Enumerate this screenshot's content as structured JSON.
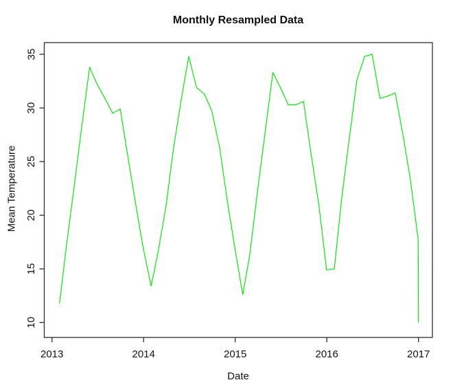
{
  "chart_data": {
    "type": "line",
    "title": "Monthly Resampled Data",
    "xlabel": "Date",
    "ylabel": "Mean Temperature",
    "line_color": "#00ee00",
    "axis_color": "#3c3c3c",
    "grid": false,
    "legend_position": "none",
    "x_ticks": [
      "2013",
      "2014",
      "2015",
      "2016",
      "2017"
    ],
    "y_ticks": [
      "10",
      "15",
      "20",
      "25",
      "30",
      "35"
    ],
    "xlim_years": [
      2012.93,
      2017.15
    ],
    "ylim": [
      9,
      36
    ],
    "points": [
      {
        "date": "2013-01-31",
        "value": 11.8
      },
      {
        "date": "2013-02-28",
        "value": 17.2
      },
      {
        "date": "2013-03-31",
        "value": 22.8
      },
      {
        "date": "2013-04-30",
        "value": 28.3
      },
      {
        "date": "2013-05-31",
        "value": 33.8
      },
      {
        "date": "2013-06-30",
        "value": 32.2
      },
      {
        "date": "2013-07-31",
        "value": 30.9
      },
      {
        "date": "2013-08-31",
        "value": 29.5
      },
      {
        "date": "2013-09-30",
        "value": 29.9
      },
      {
        "date": "2013-10-31",
        "value": 25.4
      },
      {
        "date": "2013-11-30",
        "value": 21.1
      },
      {
        "date": "2013-12-31",
        "value": 16.9
      },
      {
        "date": "2014-01-31",
        "value": 13.4
      },
      {
        "date": "2014-02-28",
        "value": 16.6
      },
      {
        "date": "2014-03-31",
        "value": 20.8
      },
      {
        "date": "2014-04-30",
        "value": 26.2
      },
      {
        "date": "2014-05-31",
        "value": 30.8
      },
      {
        "date": "2014-06-30",
        "value": 34.8
      },
      {
        "date": "2014-07-31",
        "value": 31.9
      },
      {
        "date": "2014-08-31",
        "value": 31.3
      },
      {
        "date": "2014-09-30",
        "value": 29.7
      },
      {
        "date": "2014-10-31",
        "value": 26.3
      },
      {
        "date": "2014-11-30",
        "value": 21.4
      },
      {
        "date": "2014-12-31",
        "value": 16.9
      },
      {
        "date": "2015-01-31",
        "value": 12.6
      },
      {
        "date": "2015-02-28",
        "value": 16.3
      },
      {
        "date": "2015-03-31",
        "value": 22.3
      },
      {
        "date": "2015-04-30",
        "value": 27.7
      },
      {
        "date": "2015-05-31",
        "value": 33.3
      },
      {
        "date": "2015-06-30",
        "value": 31.9
      },
      {
        "date": "2015-07-31",
        "value": 30.3
      },
      {
        "date": "2015-08-31",
        "value": 30.3
      },
      {
        "date": "2015-09-30",
        "value": 30.6
      },
      {
        "date": "2015-10-31",
        "value": 25.6
      },
      {
        "date": "2015-11-30",
        "value": 21.0
      },
      {
        "date": "2015-12-31",
        "value": 14.9
      },
      {
        "date": "2016-01-31",
        "value": 15.0
      },
      {
        "date": "2016-02-29",
        "value": 21.5
      },
      {
        "date": "2016-03-31",
        "value": 27.2
      },
      {
        "date": "2016-04-30",
        "value": 32.6
      },
      {
        "date": "2016-05-31",
        "value": 34.8
      },
      {
        "date": "2016-06-30",
        "value": 35.0
      },
      {
        "date": "2016-07-31",
        "value": 30.9
      },
      {
        "date": "2016-08-31",
        "value": 31.1
      },
      {
        "date": "2016-09-30",
        "value": 31.4
      },
      {
        "date": "2016-10-31",
        "value": 27.5
      },
      {
        "date": "2016-11-30",
        "value": 23.3
      },
      {
        "date": "2016-12-31",
        "value": 17.7
      },
      {
        "date": "2017-01-01",
        "value": 10.0
      }
    ]
  }
}
